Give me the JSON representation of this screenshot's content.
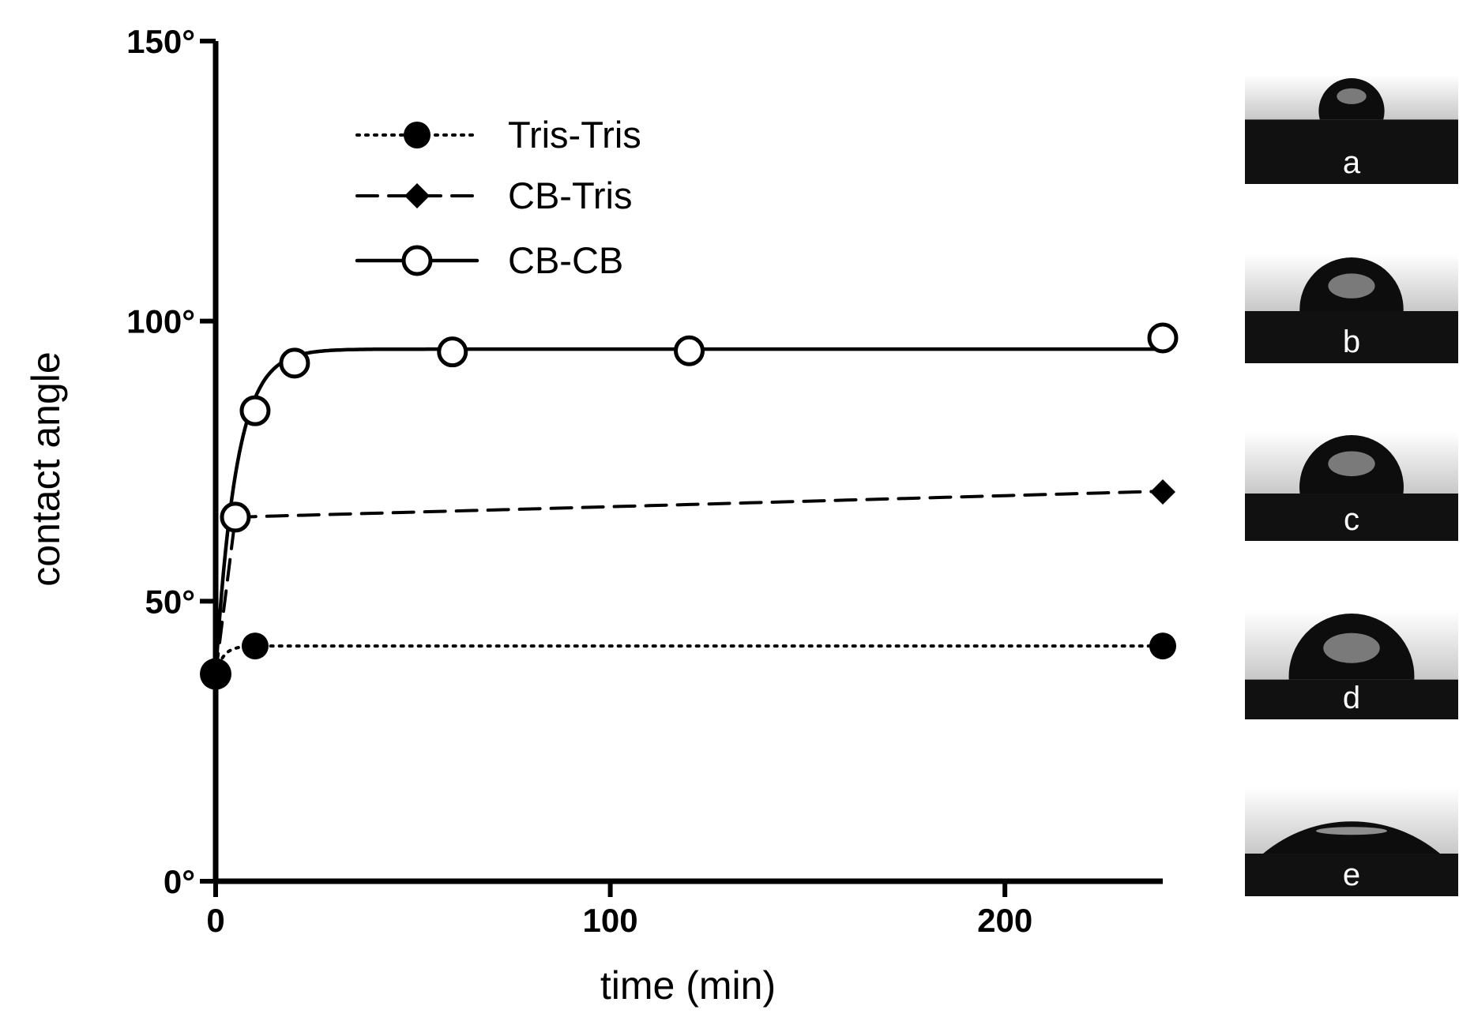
{
  "chart_data": {
    "type": "line",
    "xlabel": "time (min)",
    "ylabel": "contact angle",
    "xlim": [
      0,
      240
    ],
    "ylim": [
      0,
      150
    ],
    "x_ticks": [
      {
        "value": 0,
        "label": "0"
      },
      {
        "value": 100,
        "label": "100"
      },
      {
        "value": 200,
        "label": "200"
      }
    ],
    "y_ticks": [
      {
        "value": 0,
        "label": "0°"
      },
      {
        "value": 50,
        "label": "50°"
      },
      {
        "value": 100,
        "label": "100°"
      },
      {
        "value": 150,
        "label": "150°"
      }
    ],
    "legend_position": "top-left",
    "series": [
      {
        "name": "Tris-Tris",
        "line_style": "dotted",
        "marker": "filled-circle",
        "x": [
          0,
          10,
          240
        ],
        "y": [
          37,
          42,
          42
        ]
      },
      {
        "name": "CB-Tris",
        "line_style": "dashed",
        "marker": "filled-diamond",
        "x": [
          0,
          5,
          240
        ],
        "y": [
          37,
          65,
          69.5
        ]
      },
      {
        "name": "CB-CB",
        "line_style": "solid",
        "marker": "open-circle",
        "x": [
          0,
          5,
          10,
          20,
          60,
          120,
          240
        ],
        "y": [
          37,
          65,
          84,
          92.5,
          94.5,
          94.7,
          97
        ]
      }
    ],
    "cbcb_fit": {
      "plateau": 95,
      "start": 37,
      "k": 0.19
    },
    "tris_tris_fit": {
      "plateau": 42,
      "start": 37,
      "k": 0.5
    },
    "cb_tris_fit": {
      "slope": 0.0197,
      "value_at_5": 65
    }
  },
  "droplet_images": [
    {
      "label": "a",
      "angle_deg": 105,
      "baseline": 0.32
    },
    {
      "label": "b",
      "angle_deg": 92,
      "baseline": 0.45
    },
    {
      "label": "c",
      "angle_deg": 97,
      "baseline": 0.5
    },
    {
      "label": "d",
      "angle_deg": 93,
      "baseline": 0.58
    },
    {
      "label": "e",
      "angle_deg": 40,
      "baseline": 0.55
    }
  ]
}
